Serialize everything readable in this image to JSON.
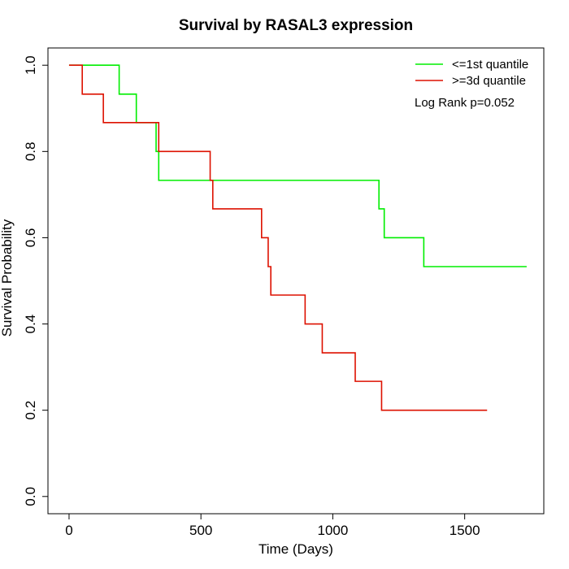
{
  "chart_data": {
    "type": "line",
    "title": "Survival by RASAL3 expression",
    "xlabel": "Time (Days)",
    "ylabel": "Survival Probability",
    "xlim": [
      -80,
      1800
    ],
    "ylim": [
      -0.04,
      1.04
    ],
    "x_ticks": [
      0,
      500,
      1000,
      1500
    ],
    "x_tick_labels": [
      "0",
      "500",
      "1000",
      "1500"
    ],
    "y_ticks": [
      0,
      0.2,
      0.4,
      0.6,
      0.8,
      1.0
    ],
    "y_tick_labels": [
      "0.0",
      "0.2",
      "0.4",
      "0.6",
      "0.8",
      "1.0"
    ],
    "legend_position": "top-right",
    "annotation": "Log Rank p=0.052",
    "series": [
      {
        "name": "<=1st quantile",
        "color": "#00ee00",
        "step_x": [
          0,
          190,
          255,
          330,
          340,
          1175,
          1195,
          1345,
          1735
        ],
        "step_y": [
          1.0,
          0.933,
          0.867,
          0.8,
          0.733,
          0.667,
          0.6,
          0.533,
          0.533
        ]
      },
      {
        "name": ">=3d quantile",
        "color": "#dd1100",
        "step_x": [
          0,
          50,
          130,
          340,
          535,
          545,
          730,
          755,
          765,
          895,
          960,
          1085,
          1185,
          1585
        ],
        "step_y": [
          1.0,
          0.933,
          0.867,
          0.8,
          0.733,
          0.667,
          0.6,
          0.533,
          0.467,
          0.4,
          0.333,
          0.267,
          0.2,
          0.2
        ]
      }
    ]
  }
}
